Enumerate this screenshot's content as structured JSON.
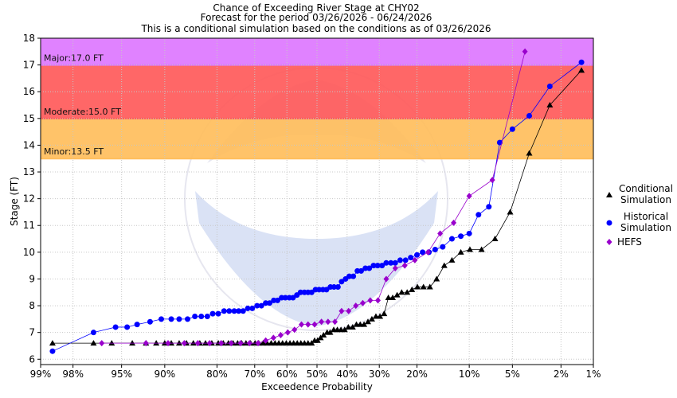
{
  "chart_data": {
    "type": "line",
    "title_lines": [
      "Chance of Exceeding River Stage at CHY02",
      "Forecast for the period 03/26/2026 - 06/24/2026",
      "This is a conditional simulation based on the conditions as of 03/26/2026"
    ],
    "xlabel": "Exceedence Probability",
    "ylabel": "Stage (FT)",
    "x_scale": "normal-probability (reversed)",
    "x_ticks": [
      {
        "p": 0.99,
        "label": "99%"
      },
      {
        "p": 0.98,
        "label": "98%"
      },
      {
        "p": 0.95,
        "label": "95%"
      },
      {
        "p": 0.9,
        "label": "90%"
      },
      {
        "p": 0.8,
        "label": "80%"
      },
      {
        "p": 0.7,
        "label": "70%"
      },
      {
        "p": 0.6,
        "label": "60%"
      },
      {
        "p": 0.5,
        "label": "50%"
      },
      {
        "p": 0.4,
        "label": "40%"
      },
      {
        "p": 0.3,
        "label": "30%"
      },
      {
        "p": 0.2,
        "label": "20%"
      },
      {
        "p": 0.1,
        "label": "10%"
      },
      {
        "p": 0.05,
        "label": "5%"
      },
      {
        "p": 0.02,
        "label": "2%"
      },
      {
        "p": 0.01,
        "label": "1%"
      }
    ],
    "ylim": [
      5.8,
      18.0
    ],
    "y_ticks": [
      6,
      7,
      8,
      9,
      10,
      11,
      12,
      13,
      14,
      15,
      16,
      17,
      18
    ],
    "grid": true,
    "legend_position": "right",
    "thresholds": [
      {
        "label": "Minor:13.5 FT",
        "from": 13.5,
        "to": 15.0,
        "color": "#ffbe5c"
      },
      {
        "label": "Moderate:15.0 FT",
        "from": 15.0,
        "to": 17.0,
        "color": "#ff5a5a"
      },
      {
        "label": "Major:17.0 FT",
        "from": 17.0,
        "to": 18.0,
        "color": "#dd77ff"
      }
    ],
    "series": [
      {
        "name": "Conditional Simulation",
        "marker": "triangle",
        "color": "#000000",
        "points": [
          [
            0.987,
            6.6
          ],
          [
            0.97,
            6.6
          ],
          [
            0.958,
            6.6
          ],
          [
            0.94,
            6.6
          ],
          [
            0.925,
            6.6
          ],
          [
            0.912,
            6.6
          ],
          [
            0.9,
            6.6
          ],
          [
            0.89,
            6.6
          ],
          [
            0.877,
            6.6
          ],
          [
            0.864,
            6.6
          ],
          [
            0.851,
            6.6
          ],
          [
            0.838,
            6.6
          ],
          [
            0.826,
            6.6
          ],
          [
            0.812,
            6.6
          ],
          [
            0.797,
            6.6
          ],
          [
            0.785,
            6.6
          ],
          [
            0.772,
            6.6
          ],
          [
            0.76,
            6.6
          ],
          [
            0.748,
            6.6
          ],
          [
            0.737,
            6.6
          ],
          [
            0.725,
            6.6
          ],
          [
            0.712,
            6.6
          ],
          [
            0.699,
            6.6
          ],
          [
            0.688,
            6.6
          ],
          [
            0.675,
            6.6
          ],
          [
            0.663,
            6.6
          ],
          [
            0.65,
            6.6
          ],
          [
            0.638,
            6.6
          ],
          [
            0.626,
            6.6
          ],
          [
            0.614,
            6.6
          ],
          [
            0.602,
            6.6
          ],
          [
            0.59,
            6.6
          ],
          [
            0.578,
            6.6
          ],
          [
            0.566,
            6.6
          ],
          [
            0.554,
            6.6
          ],
          [
            0.542,
            6.6
          ],
          [
            0.53,
            6.6
          ],
          [
            0.518,
            6.6
          ],
          [
            0.508,
            6.7
          ],
          [
            0.498,
            6.7
          ],
          [
            0.488,
            6.8
          ],
          [
            0.478,
            6.9
          ],
          [
            0.466,
            7.0
          ],
          [
            0.456,
            7.0
          ],
          [
            0.444,
            7.1
          ],
          [
            0.432,
            7.1
          ],
          [
            0.42,
            7.1
          ],
          [
            0.408,
            7.1
          ],
          [
            0.396,
            7.2
          ],
          [
            0.382,
            7.2
          ],
          [
            0.37,
            7.3
          ],
          [
            0.358,
            7.3
          ],
          [
            0.346,
            7.3
          ],
          [
            0.334,
            7.4
          ],
          [
            0.322,
            7.5
          ],
          [
            0.31,
            7.6
          ],
          [
            0.298,
            7.6
          ],
          [
            0.286,
            7.7
          ],
          [
            0.274,
            8.3
          ],
          [
            0.262,
            8.3
          ],
          [
            0.25,
            8.4
          ],
          [
            0.238,
            8.5
          ],
          [
            0.224,
            8.5
          ],
          [
            0.212,
            8.6
          ],
          [
            0.199,
            8.7
          ],
          [
            0.185,
            8.7
          ],
          [
            0.171,
            8.7
          ],
          [
            0.157,
            9.0
          ],
          [
            0.142,
            9.5
          ],
          [
            0.128,
            9.7
          ],
          [
            0.113,
            10.0
          ],
          [
            0.099,
            10.1
          ],
          [
            0.083,
            10.1
          ],
          [
            0.067,
            10.5
          ],
          [
            0.052,
            11.5
          ],
          [
            0.037,
            13.7
          ],
          [
            0.025,
            15.5
          ],
          [
            0.013,
            16.8
          ]
        ]
      },
      {
        "name": "Historical Simulation",
        "marker": "circle",
        "color": "#0000ff",
        "points": [
          [
            0.987,
            6.3
          ],
          [
            0.97,
            7.0
          ],
          [
            0.955,
            7.2
          ],
          [
            0.945,
            7.2
          ],
          [
            0.935,
            7.3
          ],
          [
            0.92,
            7.4
          ],
          [
            0.905,
            7.5
          ],
          [
            0.89,
            7.5
          ],
          [
            0.877,
            7.5
          ],
          [
            0.862,
            7.5
          ],
          [
            0.848,
            7.6
          ],
          [
            0.835,
            7.6
          ],
          [
            0.822,
            7.6
          ],
          [
            0.81,
            7.7
          ],
          [
            0.797,
            7.7
          ],
          [
            0.783,
            7.8
          ],
          [
            0.77,
            7.8
          ],
          [
            0.757,
            7.8
          ],
          [
            0.745,
            7.8
          ],
          [
            0.733,
            7.8
          ],
          [
            0.72,
            7.9
          ],
          [
            0.707,
            7.9
          ],
          [
            0.693,
            8.0
          ],
          [
            0.68,
            8.0
          ],
          [
            0.667,
            8.1
          ],
          [
            0.655,
            8.1
          ],
          [
            0.642,
            8.2
          ],
          [
            0.63,
            8.2
          ],
          [
            0.617,
            8.3
          ],
          [
            0.605,
            8.3
          ],
          [
            0.592,
            8.3
          ],
          [
            0.58,
            8.3
          ],
          [
            0.567,
            8.4
          ],
          [
            0.555,
            8.5
          ],
          [
            0.542,
            8.5
          ],
          [
            0.53,
            8.5
          ],
          [
            0.518,
            8.5
          ],
          [
            0.505,
            8.6
          ],
          [
            0.493,
            8.6
          ],
          [
            0.48,
            8.6
          ],
          [
            0.468,
            8.6
          ],
          [
            0.455,
            8.7
          ],
          [
            0.443,
            8.7
          ],
          [
            0.43,
            8.7
          ],
          [
            0.418,
            8.9
          ],
          [
            0.405,
            9.0
          ],
          [
            0.393,
            9.1
          ],
          [
            0.38,
            9.1
          ],
          [
            0.367,
            9.3
          ],
          [
            0.355,
            9.3
          ],
          [
            0.342,
            9.4
          ],
          [
            0.33,
            9.4
          ],
          [
            0.317,
            9.5
          ],
          [
            0.305,
            9.5
          ],
          [
            0.292,
            9.5
          ],
          [
            0.28,
            9.6
          ],
          [
            0.267,
            9.6
          ],
          [
            0.255,
            9.6
          ],
          [
            0.242,
            9.7
          ],
          [
            0.228,
            9.7
          ],
          [
            0.215,
            9.8
          ],
          [
            0.2,
            9.9
          ],
          [
            0.187,
            10.0
          ],
          [
            0.173,
            10.0
          ],
          [
            0.16,
            10.1
          ],
          [
            0.145,
            10.2
          ],
          [
            0.128,
            10.5
          ],
          [
            0.113,
            10.6
          ],
          [
            0.1,
            10.7
          ],
          [
            0.087,
            11.4
          ],
          [
            0.074,
            11.7
          ],
          [
            0.062,
            14.1
          ],
          [
            0.05,
            14.6
          ],
          [
            0.037,
            15.1
          ],
          [
            0.025,
            16.2
          ],
          [
            0.013,
            17.1
          ]
        ]
      },
      {
        "name": "HEFS",
        "marker": "diamond",
        "color": "#9900cc",
        "points": [
          [
            0.965,
            6.6
          ],
          [
            0.925,
            6.6
          ],
          [
            0.895,
            6.6
          ],
          [
            0.868,
            6.6
          ],
          [
            0.842,
            6.6
          ],
          [
            0.817,
            6.6
          ],
          [
            0.79,
            6.6
          ],
          [
            0.765,
            6.6
          ],
          [
            0.74,
            6.6
          ],
          [
            0.715,
            6.6
          ],
          [
            0.69,
            6.6
          ],
          [
            0.667,
            6.7
          ],
          [
            0.643,
            6.8
          ],
          [
            0.62,
            6.9
          ],
          [
            0.597,
            7.0
          ],
          [
            0.575,
            7.1
          ],
          [
            0.552,
            7.3
          ],
          [
            0.53,
            7.3
          ],
          [
            0.508,
            7.3
          ],
          [
            0.485,
            7.4
          ],
          [
            0.463,
            7.4
          ],
          [
            0.44,
            7.4
          ],
          [
            0.418,
            7.8
          ],
          [
            0.395,
            7.8
          ],
          [
            0.372,
            8.0
          ],
          [
            0.35,
            8.1
          ],
          [
            0.327,
            8.2
          ],
          [
            0.304,
            8.2
          ],
          [
            0.28,
            9.0
          ],
          [
            0.255,
            9.4
          ],
          [
            0.23,
            9.5
          ],
          [
            0.205,
            9.7
          ],
          [
            0.175,
            10.0
          ],
          [
            0.15,
            10.7
          ],
          [
            0.125,
            11.1
          ],
          [
            0.1,
            12.1
          ],
          [
            0.07,
            12.7
          ],
          [
            0.04,
            17.5
          ]
        ]
      }
    ]
  }
}
